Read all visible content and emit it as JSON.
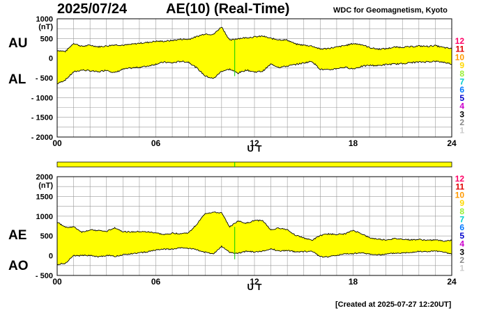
{
  "header": {
    "date": "2025/07/24",
    "title": "AE(10) (Real-Time)",
    "source": "WDC for Geomagnetism, Kyoto"
  },
  "footer": {
    "created": "[Created at 2025-07-27 12:20UT]"
  },
  "colors": {
    "fill": "#ffff00",
    "line": "#000000",
    "grid": "#999999",
    "marker": "#00cc00"
  },
  "scale_legend": [
    {
      "label": "12",
      "color": "#ff0066"
    },
    {
      "label": "11",
      "color": "#e00000"
    },
    {
      "label": "10",
      "color": "#ff9900"
    },
    {
      "label": "9",
      "color": "#ffd700"
    },
    {
      "label": "8",
      "color": "#99ee33"
    },
    {
      "label": "7",
      "color": "#00cccc"
    },
    {
      "label": "6",
      "color": "#0077ff"
    },
    {
      "label": "5",
      "color": "#0000cc"
    },
    {
      "label": "4",
      "color": "#cc00cc"
    },
    {
      "label": "3",
      "color": "#000000"
    },
    {
      "label": "2",
      "color": "#888888"
    },
    {
      "label": "1",
      "color": "#cccccc"
    }
  ],
  "chart_data": [
    {
      "type": "area",
      "ylabel": "(nT)",
      "xlabel": "U T",
      "upper_label": "AU",
      "lower_label": "AL",
      "ylim": [
        -2000,
        1000
      ],
      "yticks": [
        1000,
        500,
        0,
        -500,
        -1000,
        -1500,
        -2000
      ],
      "xlim": [
        0,
        24
      ],
      "xticks": [
        "00",
        "06",
        "12",
        "18",
        "24"
      ],
      "hours": [
        0,
        0.5,
        1,
        1.5,
        2,
        2.5,
        3,
        3.5,
        4,
        4.5,
        5,
        5.5,
        6,
        6.5,
        7,
        7.5,
        8,
        8.5,
        9,
        9.5,
        10,
        10.5,
        11,
        11.5,
        12,
        12.5,
        13,
        13.5,
        14,
        14.5,
        15,
        15.5,
        16,
        16.5,
        17,
        17.5,
        18,
        18.5,
        19,
        19.5,
        20,
        20.5,
        21,
        21.5,
        22,
        22.5,
        23,
        23.5,
        24
      ],
      "series": [
        {
          "name": "AU",
          "values": [
            200,
            170,
            380,
            300,
            330,
            290,
            310,
            340,
            330,
            350,
            380,
            400,
            430,
            430,
            450,
            480,
            480,
            550,
            620,
            600,
            800,
            450,
            500,
            520,
            540,
            560,
            500,
            470,
            460,
            360,
            330,
            310,
            230,
            250,
            280,
            320,
            370,
            350,
            270,
            230,
            240,
            280,
            280,
            290,
            310,
            300,
            320,
            270,
            240
          ]
        },
        {
          "name": "AL",
          "values": [
            -650,
            -550,
            -350,
            -300,
            -320,
            -350,
            -300,
            -370,
            -280,
            -250,
            -230,
            -200,
            -150,
            -100,
            -120,
            -80,
            -100,
            -250,
            -450,
            -520,
            -330,
            -280,
            -380,
            -300,
            -350,
            -330,
            -150,
            -230,
            -200,
            -160,
            -120,
            -80,
            -280,
            -300,
            -260,
            -230,
            -270,
            -210,
            -180,
            -190,
            -160,
            -150,
            -140,
            -110,
            -100,
            -90,
            -80,
            -100,
            -150
          ]
        }
      ]
    },
    {
      "type": "area",
      "ylabel": "(nT)",
      "xlabel": "U T",
      "upper_label": "AE",
      "lower_label": "AO",
      "ylim": [
        -500,
        2000
      ],
      "yticks": [
        2000,
        1500,
        1000,
        500,
        0,
        -500
      ],
      "xlim": [
        0,
        24
      ],
      "xticks": [
        "00",
        "06",
        "12",
        "18",
        "24"
      ],
      "hours": [
        0,
        0.5,
        1,
        1.5,
        2,
        2.5,
        3,
        3.5,
        4,
        4.5,
        5,
        5.5,
        6,
        6.5,
        7,
        7.5,
        8,
        8.5,
        9,
        9.5,
        10,
        10.5,
        11,
        11.5,
        12,
        12.5,
        13,
        13.5,
        14,
        14.5,
        15,
        15.5,
        16,
        16.5,
        17,
        17.5,
        18,
        18.5,
        19,
        19.5,
        20,
        20.5,
        21,
        21.5,
        22,
        22.5,
        23,
        23.5,
        24
      ],
      "series": [
        {
          "name": "AE",
          "values": [
            850,
            720,
            730,
            600,
            650,
            640,
            610,
            710,
            610,
            600,
            610,
            600,
            580,
            530,
            570,
            560,
            580,
            800,
            1070,
            1100,
            1080,
            730,
            880,
            820,
            890,
            890,
            650,
            700,
            660,
            520,
            450,
            390,
            510,
            550,
            540,
            550,
            640,
            560,
            450,
            420,
            400,
            430,
            420,
            400,
            410,
            390,
            400,
            370,
            390
          ]
        },
        {
          "name": "AO",
          "values": [
            -220,
            -190,
            0,
            0,
            5,
            -30,
            5,
            -15,
            25,
            50,
            75,
            100,
            140,
            165,
            165,
            200,
            190,
            150,
            85,
            40,
            235,
            85,
            60,
            110,
            95,
            115,
            175,
            120,
            130,
            100,
            105,
            115,
            -25,
            -25,
            10,
            45,
            50,
            70,
            45,
            20,
            40,
            65,
            70,
            90,
            105,
            105,
            120,
            85,
            45
          ]
        }
      ]
    }
  ]
}
